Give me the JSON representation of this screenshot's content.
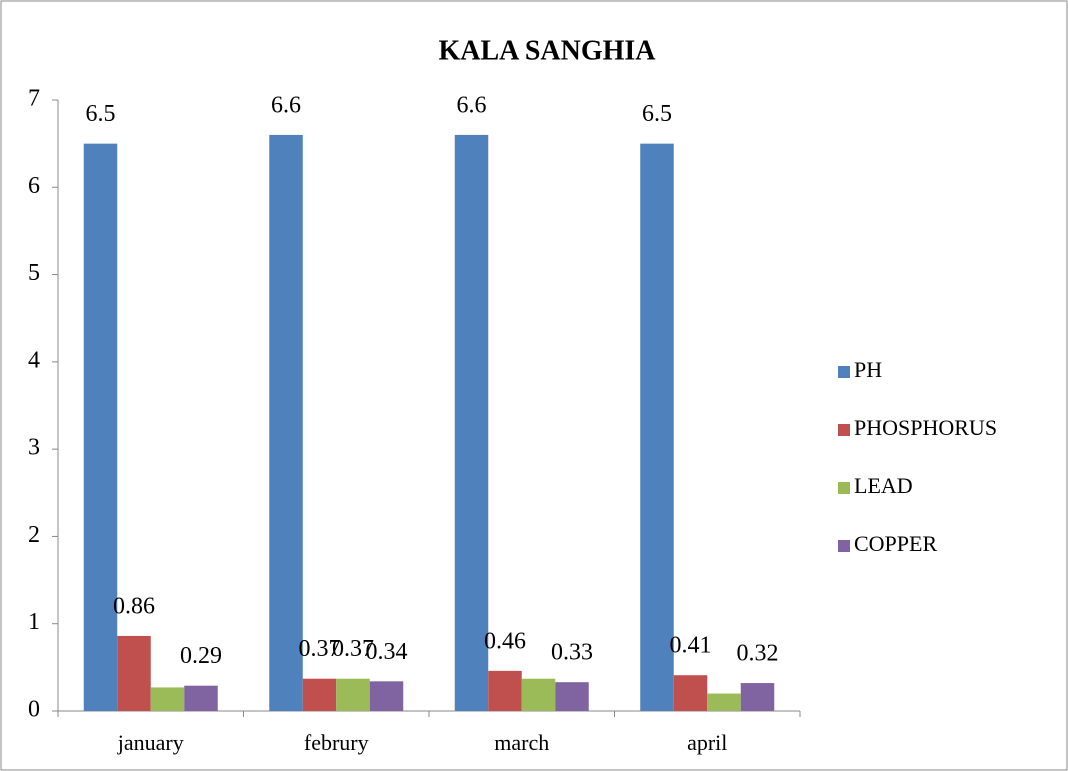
{
  "chart_data": {
    "type": "bar",
    "title": "KALA SANGHIA",
    "categories": [
      "january",
      "februry",
      "march",
      "april"
    ],
    "series": [
      {
        "name": "PH",
        "color": "#4f81bd",
        "values": [
          6.5,
          6.6,
          6.6,
          6.5
        ]
      },
      {
        "name": "PHOSPHORUS",
        "color": "#c0504d",
        "values": [
          0.86,
          0.37,
          0.46,
          0.41
        ]
      },
      {
        "name": "LEAD",
        "color": "#9bbb59",
        "values": [
          0.27,
          0.37,
          0.37,
          0.2
        ],
        "value_labels": [
          null,
          "0.37",
          null,
          null
        ]
      },
      {
        "name": "COPPER",
        "color": "#8064a2",
        "values": [
          0.29,
          0.34,
          0.33,
          0.32
        ]
      }
    ],
    "ylim": [
      0,
      7
    ],
    "yticks": [
      0,
      1,
      2,
      3,
      4,
      5,
      6,
      7
    ],
    "grid": false,
    "legend": "right"
  }
}
